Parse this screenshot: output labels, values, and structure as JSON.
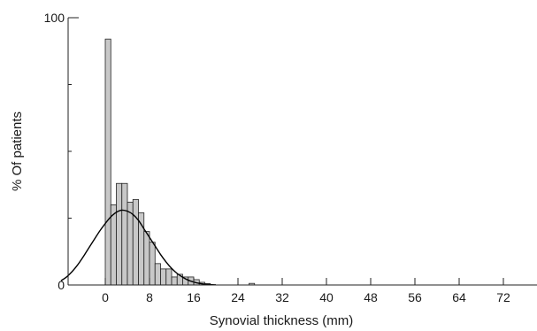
{
  "chart_data": {
    "type": "bar",
    "xlabel": "Synovial thickness (mm)",
    "ylabel": "% Of patients",
    "x_tick_values": [
      0,
      8,
      16,
      24,
      32,
      40,
      48,
      56,
      64,
      72
    ],
    "x_tick_labels": [
      "0",
      "8",
      "16",
      "24",
      "32",
      "40",
      "48",
      "56",
      "64",
      "72"
    ],
    "y_tick_labels": [
      "0",
      "100"
    ],
    "y_tick_values": [
      0,
      100
    ],
    "xlim": [
      -8,
      78
    ],
    "ylim": [
      0,
      100
    ],
    "bin_width": 1,
    "bars": [
      {
        "x": 0,
        "value": 92
      },
      {
        "x": 1,
        "value": 30
      },
      {
        "x": 2,
        "value": 38
      },
      {
        "x": 3,
        "value": 38
      },
      {
        "x": 4,
        "value": 31
      },
      {
        "x": 5,
        "value": 32
      },
      {
        "x": 6,
        "value": 27
      },
      {
        "x": 7,
        "value": 20
      },
      {
        "x": 8,
        "value": 16
      },
      {
        "x": 9,
        "value": 8
      },
      {
        "x": 10,
        "value": 6
      },
      {
        "x": 11,
        "value": 6
      },
      {
        "x": 12,
        "value": 3
      },
      {
        "x": 13,
        "value": 4
      },
      {
        "x": 14,
        "value": 3
      },
      {
        "x": 15,
        "value": 3
      },
      {
        "x": 16,
        "value": 2
      },
      {
        "x": 17,
        "value": 1
      },
      {
        "x": 18,
        "value": 0.5
      },
      {
        "x": 26,
        "value": 0.6
      }
    ],
    "curve": {
      "type": "normal",
      "x": [
        -8,
        -7,
        -6,
        -5,
        -4,
        -3,
        -2,
        -1,
        0,
        1,
        2,
        3,
        4,
        5,
        6,
        7,
        8,
        9,
        10,
        11,
        12,
        13,
        14,
        15,
        16,
        17,
        18,
        19,
        20
      ],
      "y": [
        1.6,
        3,
        5,
        7.5,
        10.5,
        13.8,
        17,
        20.2,
        23,
        25.5,
        27.2,
        28,
        27.6,
        26.4,
        24.2,
        21,
        17.8,
        14.6,
        11.4,
        8.6,
        6.2,
        4.3,
        2.9,
        1.8,
        1.1,
        0.6,
        0.3,
        0.15,
        0.05
      ]
    },
    "grid": false
  }
}
